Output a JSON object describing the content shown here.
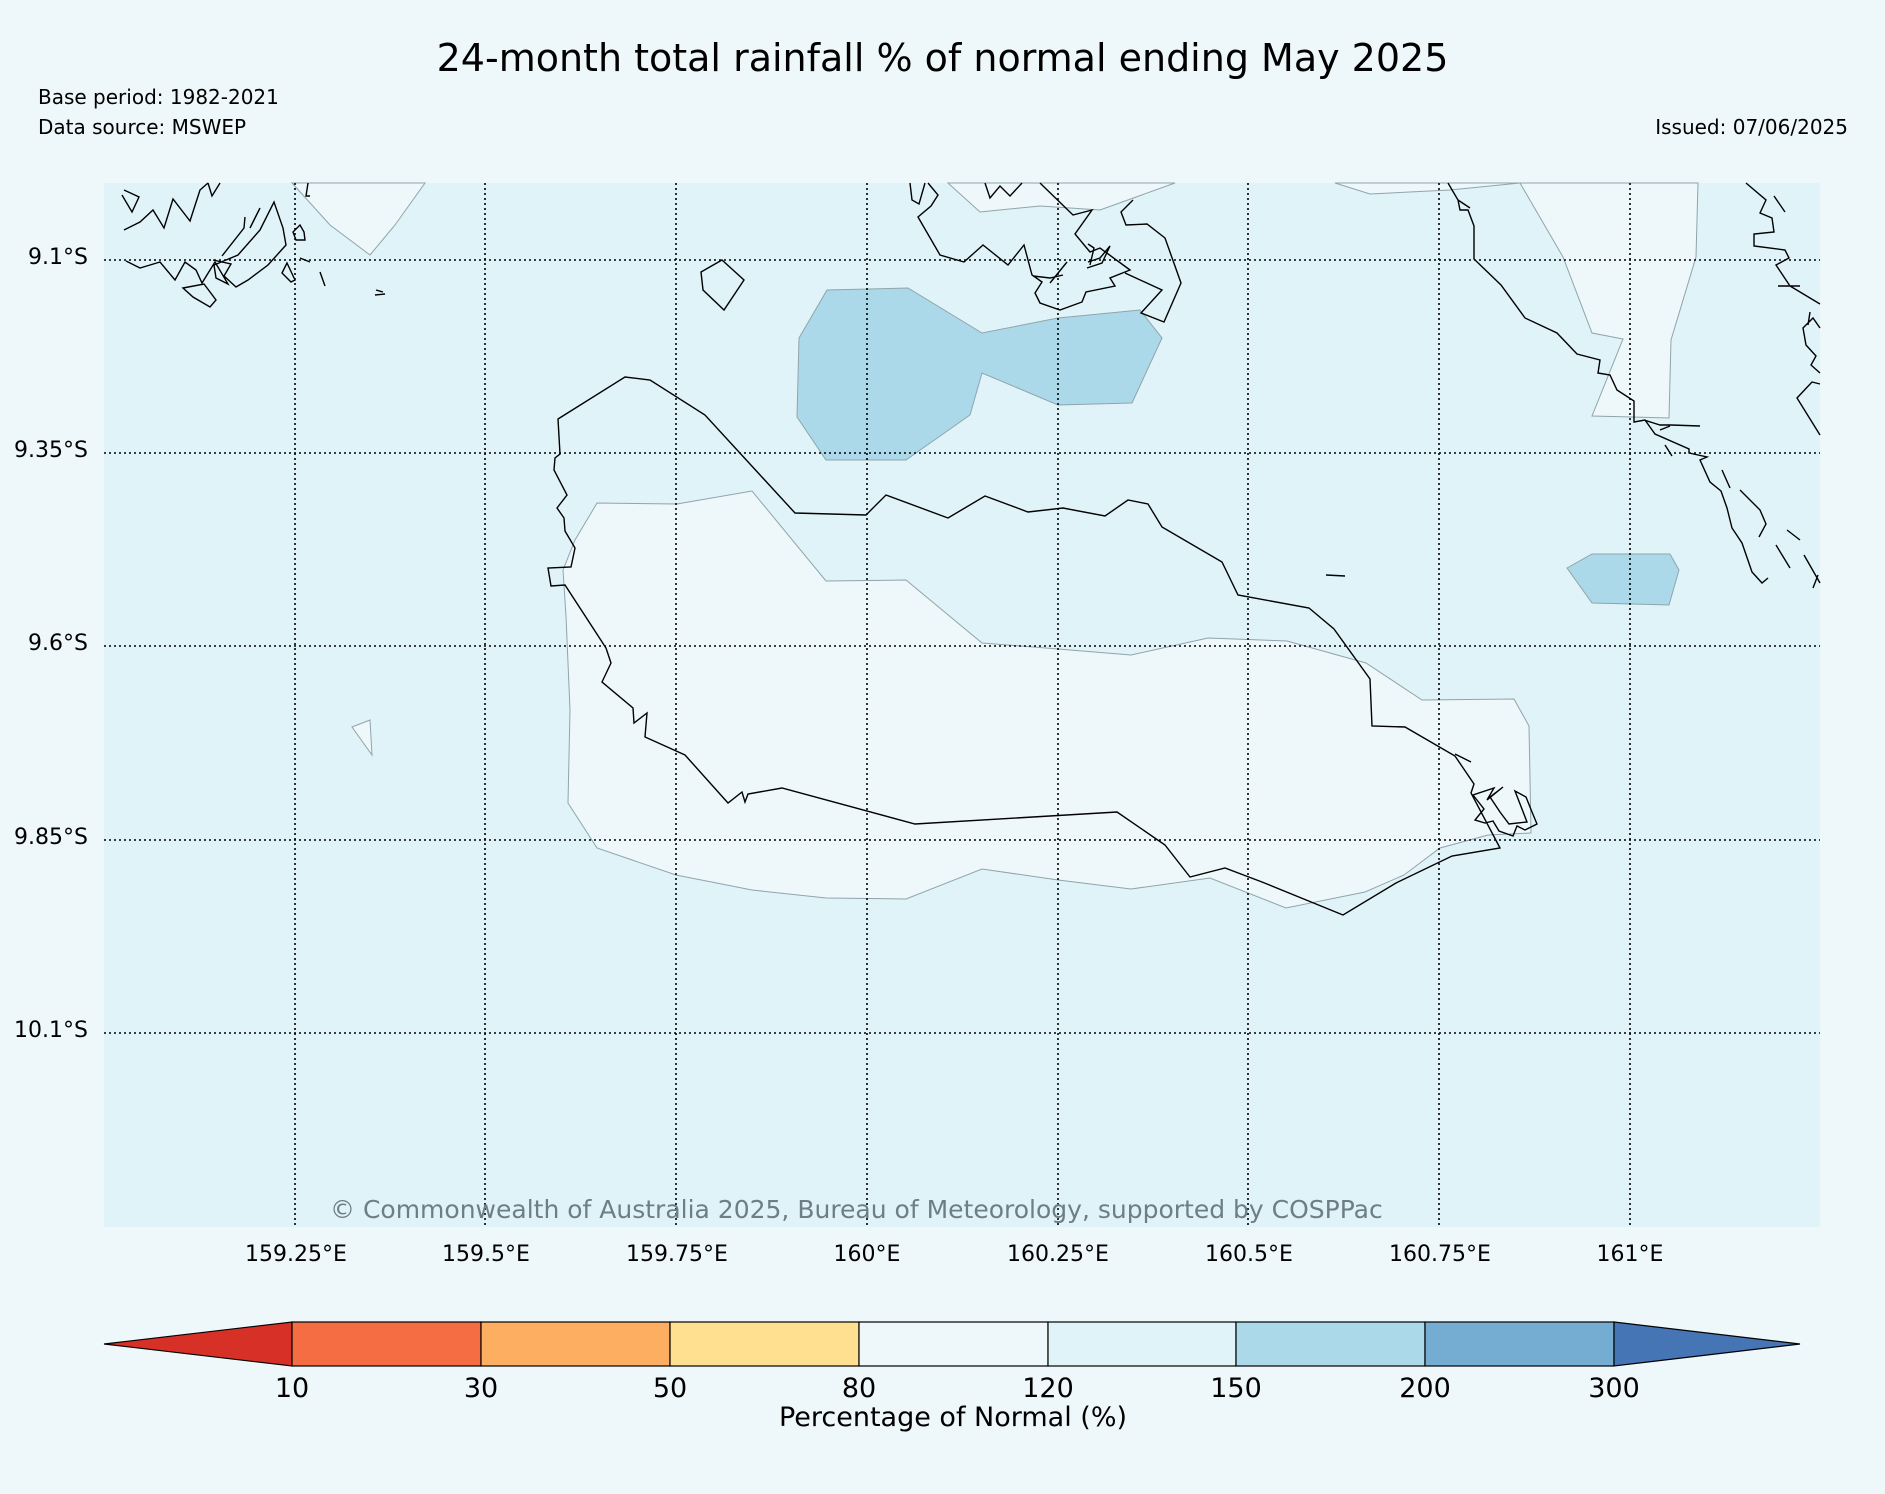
{
  "header": {
    "title": "24-month total rainfall % of normal ending May 2025",
    "base_period": "Base period: 1982-2021",
    "data_source": "Data source: MSWEP",
    "issued": "Issued: 07/06/2025"
  },
  "map": {
    "lat_labels": [
      "9.1°S",
      "9.35°S",
      "9.6°S",
      "9.85°S",
      "10.1°S"
    ],
    "lon_labels": [
      "159.25°E",
      "159.5°E",
      "159.75°E",
      "160°E",
      "160.25°E",
      "160.5°E",
      "160.75°E",
      "161°E"
    ],
    "copyright": "© Commonwealth of Australia 2025, Bureau of Meteorology, supported by COSPPac",
    "colors": {
      "ocean_120_150": "#e0f3f8",
      "land_80_120": "#eef7f9",
      "zone_150_200": "#abd9e9",
      "coastline": "#000000",
      "contour": "#8fa5ab"
    }
  },
  "colorbar": {
    "title": "Percentage of Normal (%)",
    "ticks": [
      "10",
      "30",
      "50",
      "80",
      "120",
      "150",
      "200",
      "300"
    ],
    "colors": [
      "#d73027",
      "#f46d43",
      "#fdae61",
      "#fee090",
      "#eef7f9",
      "#e0f3f8",
      "#abd9e9",
      "#74add1",
      "#4575b4"
    ]
  }
}
